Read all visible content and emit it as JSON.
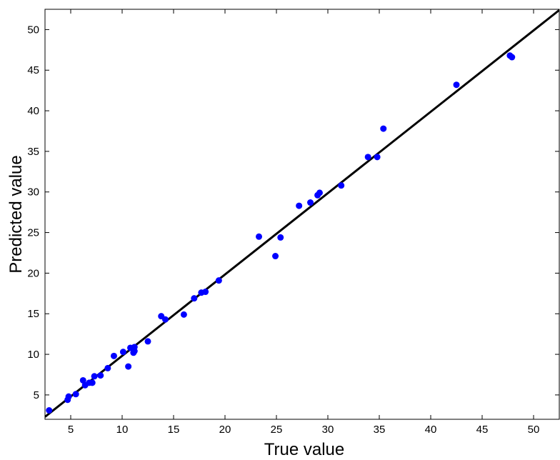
{
  "chart_data": {
    "type": "scatter",
    "title": "",
    "xlabel": "True value",
    "ylabel": "Predicted value",
    "xlim": [
      2.5,
      52.5
    ],
    "ylim": [
      2,
      52.5
    ],
    "xticks": [
      5,
      10,
      15,
      20,
      25,
      30,
      35,
      40,
      45,
      50
    ],
    "yticks": [
      5,
      10,
      15,
      20,
      25,
      30,
      35,
      40,
      45,
      50
    ],
    "grid": false,
    "legend": "none",
    "colors": {
      "points": "#0000ff",
      "line": "#000000",
      "frame": "#000000"
    },
    "reference_line": {
      "x": [
        2.5,
        52.5
      ],
      "y": [
        2.3,
        52.4
      ]
    },
    "series": [
      {
        "x": [
          2.9,
          4.7,
          4.8,
          5.5,
          6.2,
          6.4,
          6.8,
          7.1,
          7.3,
          7.9,
          8.6,
          9.2,
          10.1,
          10.6,
          10.8,
          11.1,
          11.2,
          11.2,
          12.5,
          13.8,
          14.2,
          16.0,
          17.0,
          17.7,
          18.1,
          19.4,
          23.3,
          24.9,
          25.4,
          27.2,
          28.3,
          29.0,
          29.2,
          31.3,
          33.9,
          34.8,
          35.4,
          42.5,
          47.7,
          47.9
        ],
        "y": [
          3.1,
          4.4,
          4.8,
          5.1,
          6.8,
          6.2,
          6.5,
          6.5,
          7.3,
          7.4,
          8.3,
          9.8,
          10.3,
          8.5,
          10.8,
          10.2,
          10.4,
          10.9,
          11.6,
          14.7,
          14.3,
          14.9,
          16.9,
          17.6,
          17.7,
          19.1,
          24.5,
          22.1,
          24.4,
          28.3,
          28.7,
          29.6,
          29.9,
          30.8,
          34.3,
          34.3,
          37.8,
          43.2,
          46.8,
          46.6
        ]
      }
    ]
  }
}
